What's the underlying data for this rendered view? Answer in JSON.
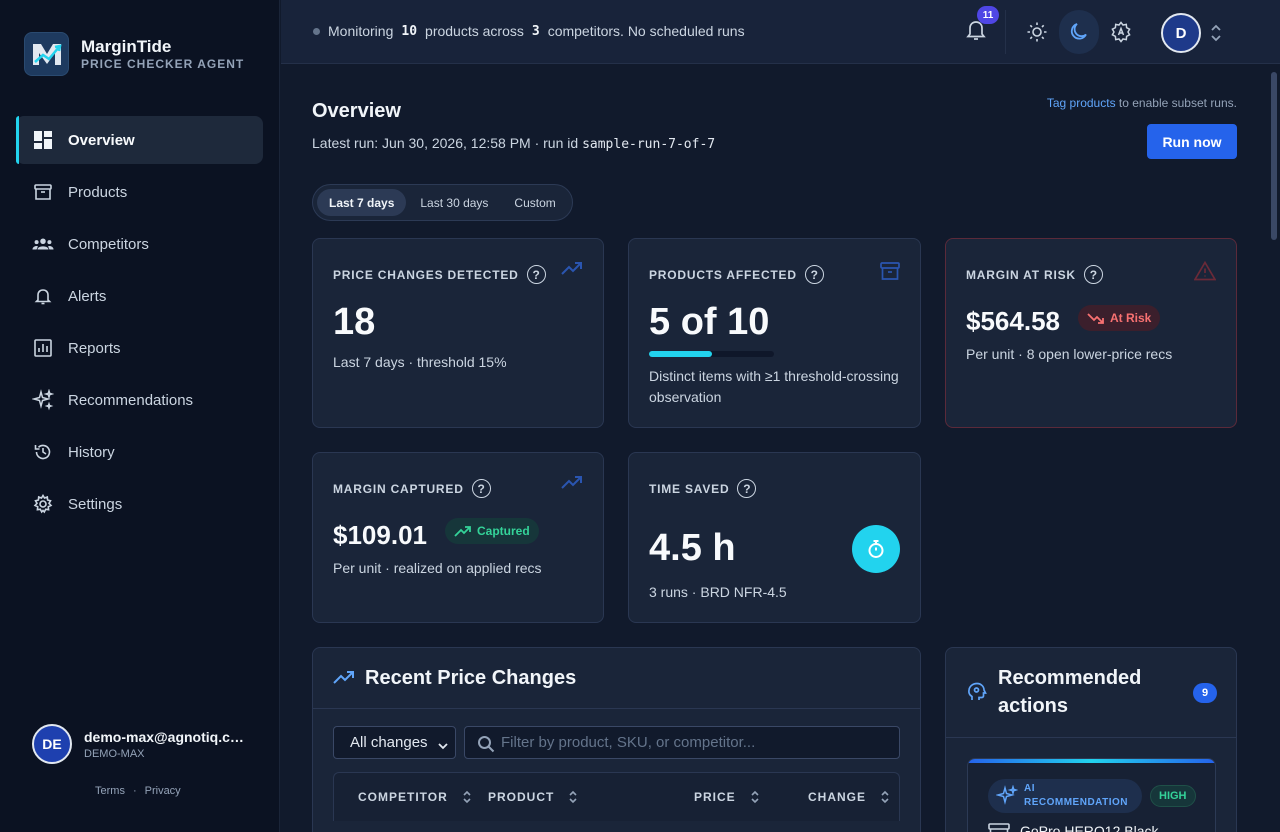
{
  "brand": {
    "name": "MarginTide",
    "subtitle": "PRICE CHECKER AGENT"
  },
  "nav": [
    {
      "label": "Overview",
      "icon": "dashboard-icon",
      "active": true
    },
    {
      "label": "Products",
      "icon": "archive-box-icon"
    },
    {
      "label": "Competitors",
      "icon": "users-group-icon"
    },
    {
      "label": "Alerts",
      "icon": "bell-icon"
    },
    {
      "label": "Reports",
      "icon": "bar-chart-icon"
    },
    {
      "label": "Recommendations",
      "icon": "sparkles-icon"
    },
    {
      "label": "History",
      "icon": "history-icon"
    },
    {
      "label": "Settings",
      "icon": "gear-icon"
    }
  ],
  "user": {
    "initials": "DE",
    "email": "demo-max@agnotiq.com",
    "org": "DEMO-MAX"
  },
  "legal": {
    "terms": "Terms",
    "sep": "·",
    "privacy": "Privacy"
  },
  "topbar": {
    "status_pre": "Monitoring",
    "products_count": "10",
    "status_mid": "products across",
    "competitors_count": "3",
    "status_post": "competitors. No scheduled runs",
    "notifications": "11",
    "avatar_initial": "D"
  },
  "header": {
    "title": "Overview",
    "latest_run": "Latest run: Jun 30, 2026, 12:58 PM · run id",
    "run_id": "sample-run-7-of-7",
    "tag_link": "Tag products",
    "tag_hint": " to enable subset runs.",
    "run_button": "Run now"
  },
  "range_tabs": [
    {
      "label": "Last 7 days",
      "active": true
    },
    {
      "label": "Last 30 days"
    },
    {
      "label": "Custom"
    }
  ],
  "kpis": {
    "price_changes": {
      "label": "PRICE CHANGES DETECTED",
      "value": "18",
      "note": "Last 7 days · threshold 15%"
    },
    "products_affected": {
      "label": "PRODUCTS AFFECTED",
      "value": "5 of 10",
      "fraction": 0.5,
      "note": "Distinct items with ≥1 threshold-crossing observation"
    },
    "margin_risk": {
      "label": "MARGIN AT RISK",
      "value": "$564.58",
      "pill": "At Risk",
      "note": "Per unit · 8 open lower-price recs"
    },
    "margin_captured": {
      "label": "MARGIN CAPTURED",
      "value": "$109.01",
      "pill": "Captured",
      "note": "Per unit · realized on applied recs"
    },
    "time_saved": {
      "label": "TIME SAVED",
      "value": "4.5 h",
      "note": "3 runs · BRD NFR-4.5"
    }
  },
  "price_changes": {
    "title": "Recent Price Changes",
    "filter_selected": "All changes",
    "search_placeholder": "Filter by product, SKU, or competitor...",
    "columns": [
      "COMPETITOR",
      "PRODUCT",
      "PRICE",
      "CHANGE"
    ]
  },
  "recommendations": {
    "title": "Recommended actions",
    "count": "9",
    "card": {
      "tag": "AI RECOMMENDATION",
      "priority": "HIGH",
      "product": "GoPro HERO12 Black"
    }
  },
  "colors": {
    "accent": "#2563eb",
    "cyan": "#22d3ee",
    "risk": "#f87171",
    "success": "#34d399"
  }
}
